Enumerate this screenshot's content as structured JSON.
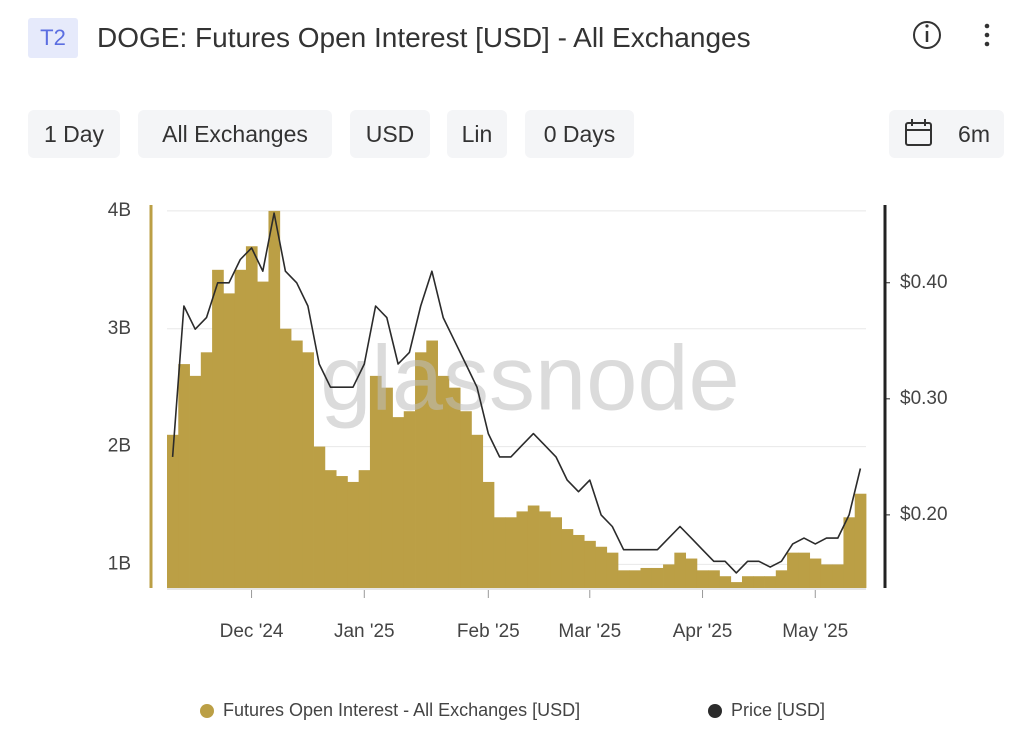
{
  "header": {
    "badge": "T2",
    "title": "DOGE: Futures Open Interest [USD] - All Exchanges"
  },
  "controls": [
    "1 Day",
    "All Exchanges",
    "USD",
    "Lin",
    "0 Days",
    "6m"
  ],
  "chart_data": {
    "type": "bar",
    "watermark": "glassnode",
    "categories": [
      null,
      null,
      null,
      null,
      null,
      null,
      null,
      "Dec '24",
      null,
      null,
      null,
      null,
      null,
      null,
      null,
      null,
      null,
      "Jan '25",
      null,
      null,
      null,
      null,
      null,
      null,
      null,
      null,
      null,
      null,
      "Feb '25",
      null,
      null,
      null,
      null,
      null,
      null,
      null,
      null,
      "Mar '25",
      null,
      null,
      null,
      null,
      null,
      null,
      null,
      null,
      null,
      "Apr '25",
      null,
      null,
      null,
      null,
      null,
      null,
      null,
      null,
      null,
      "May '25",
      null,
      null,
      null,
      null
    ],
    "ylim": [
      800000000.0,
      4050000000.0
    ],
    "yticks": [
      {
        "value": 1000000000.0,
        "label": "1B"
      },
      {
        "value": 2000000000.0,
        "label": "2B"
      },
      {
        "value": 3000000000.0,
        "label": "3B"
      },
      {
        "value": 4000000000.0,
        "label": "4B"
      }
    ],
    "y2lim": [
      0.137,
      0.467
    ],
    "y2ticks": [
      {
        "value": 0.2,
        "label": "$0.20"
      },
      {
        "value": 0.3,
        "label": "$0.30"
      },
      {
        "value": 0.4,
        "label": "$0.40"
      }
    ],
    "grid": true,
    "series": [
      {
        "name": "Futures Open Interest - All Exchanges [USD]",
        "color": "#bb9f45",
        "type": "bar",
        "values": [
          2100000000.0,
          2700000000.0,
          2600000000.0,
          2800000000.0,
          3500000000.0,
          3300000000.0,
          3500000000.0,
          3700000000.0,
          3400000000.0,
          4000000000.0,
          3000000000.0,
          2900000000.0,
          2800000000.0,
          2000000000.0,
          1800000000.0,
          1750000000.0,
          1700000000.0,
          1800000000.0,
          2600000000.0,
          2500000000.0,
          2250000000.0,
          2300000000.0,
          2800000000.0,
          2900000000.0,
          2600000000.0,
          2500000000.0,
          2300000000.0,
          2100000000.0,
          1700000000.0,
          1400000000.0,
          1400000000.0,
          1450000000.0,
          1500000000.0,
          1450000000.0,
          1400000000.0,
          1300000000.0,
          1250000000.0,
          1200000000.0,
          1150000000.0,
          1100000000.0,
          950000000.0,
          950000000.0,
          970000000.0,
          970000000.0,
          1000000000.0,
          1100000000.0,
          1050000000.0,
          950000000.0,
          950000000.0,
          900000000.0,
          850000000.0,
          900000000.0,
          900000000.0,
          900000000.0,
          950000000.0,
          1100000000.0,
          1100000000.0,
          1050000000.0,
          1000000000.0,
          1000000000.0,
          1400000000.0,
          1600000000.0
        ]
      },
      {
        "name": "Price [USD]",
        "color": "#2b2b2b",
        "type": "line",
        "axis": "y2",
        "values": [
          0.25,
          0.38,
          0.36,
          0.37,
          0.4,
          0.4,
          0.42,
          0.43,
          0.41,
          0.46,
          0.41,
          0.4,
          0.38,
          0.33,
          0.31,
          0.31,
          0.31,
          0.33,
          0.38,
          0.37,
          0.33,
          0.34,
          0.38,
          0.41,
          0.37,
          0.35,
          0.33,
          0.31,
          0.27,
          0.25,
          0.25,
          0.26,
          0.27,
          0.26,
          0.25,
          0.23,
          0.22,
          0.23,
          0.2,
          0.19,
          0.17,
          0.17,
          0.17,
          0.17,
          0.18,
          0.19,
          0.18,
          0.17,
          0.16,
          0.16,
          0.15,
          0.16,
          0.16,
          0.155,
          0.16,
          0.175,
          0.18,
          0.175,
          0.18,
          0.18,
          0.2,
          0.24
        ]
      }
    ]
  }
}
